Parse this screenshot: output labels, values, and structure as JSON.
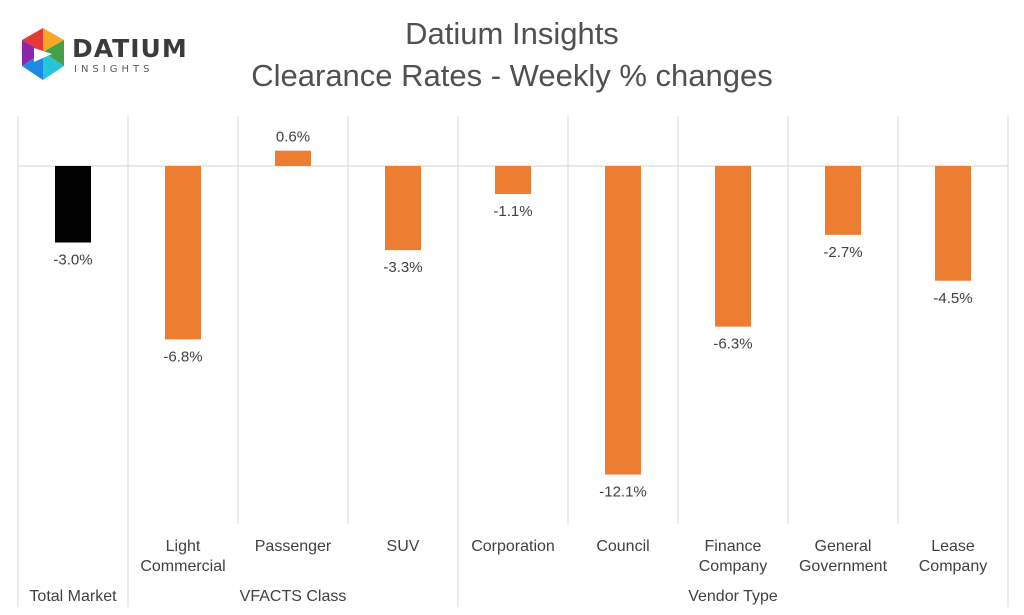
{
  "logo": {
    "word": "DATIUM",
    "sub": "INSIGHTS"
  },
  "colors": {
    "total": "#000000",
    "bar": "#ED7D31",
    "grid": "#D9D9D9",
    "text": "#404040"
  },
  "chart_data": {
    "type": "bar",
    "title": "Datium Insights",
    "subtitle": "Clearance Rates - Weekly % changes",
    "ylim": [
      -14,
      2
    ],
    "grid": "vertical category separators",
    "categories": [
      "Total Market",
      "Light Commercial",
      "Passenger",
      "SUV",
      "Corporation",
      "Council",
      "Finance Company",
      "General Government",
      "Lease Company"
    ],
    "category_lines": [
      [
        "Total Market"
      ],
      [
        "Light",
        "Commercial"
      ],
      [
        "Passenger"
      ],
      [
        "SUV"
      ],
      [
        "Corporation"
      ],
      [
        "Council"
      ],
      [
        "Finance",
        "Company"
      ],
      [
        "General",
        "Government"
      ],
      [
        "Lease",
        "Company"
      ]
    ],
    "groups": [
      {
        "label": "",
        "members": [
          0
        ]
      },
      {
        "label": "VFACTS Class",
        "members": [
          1,
          2,
          3
        ]
      },
      {
        "label": "Vendor Type",
        "members": [
          4,
          5,
          6,
          7,
          8
        ]
      }
    ],
    "values": [
      -3.0,
      -6.8,
      0.6,
      -3.3,
      -1.1,
      -12.1,
      -6.3,
      -2.7,
      -4.5
    ],
    "data_labels": [
      "-3.0%",
      "-6.8%",
      "0.6%",
      "-3.3%",
      "-1.1%",
      "-12.1%",
      "-6.3%",
      "-2.7%",
      "-4.5%"
    ]
  }
}
